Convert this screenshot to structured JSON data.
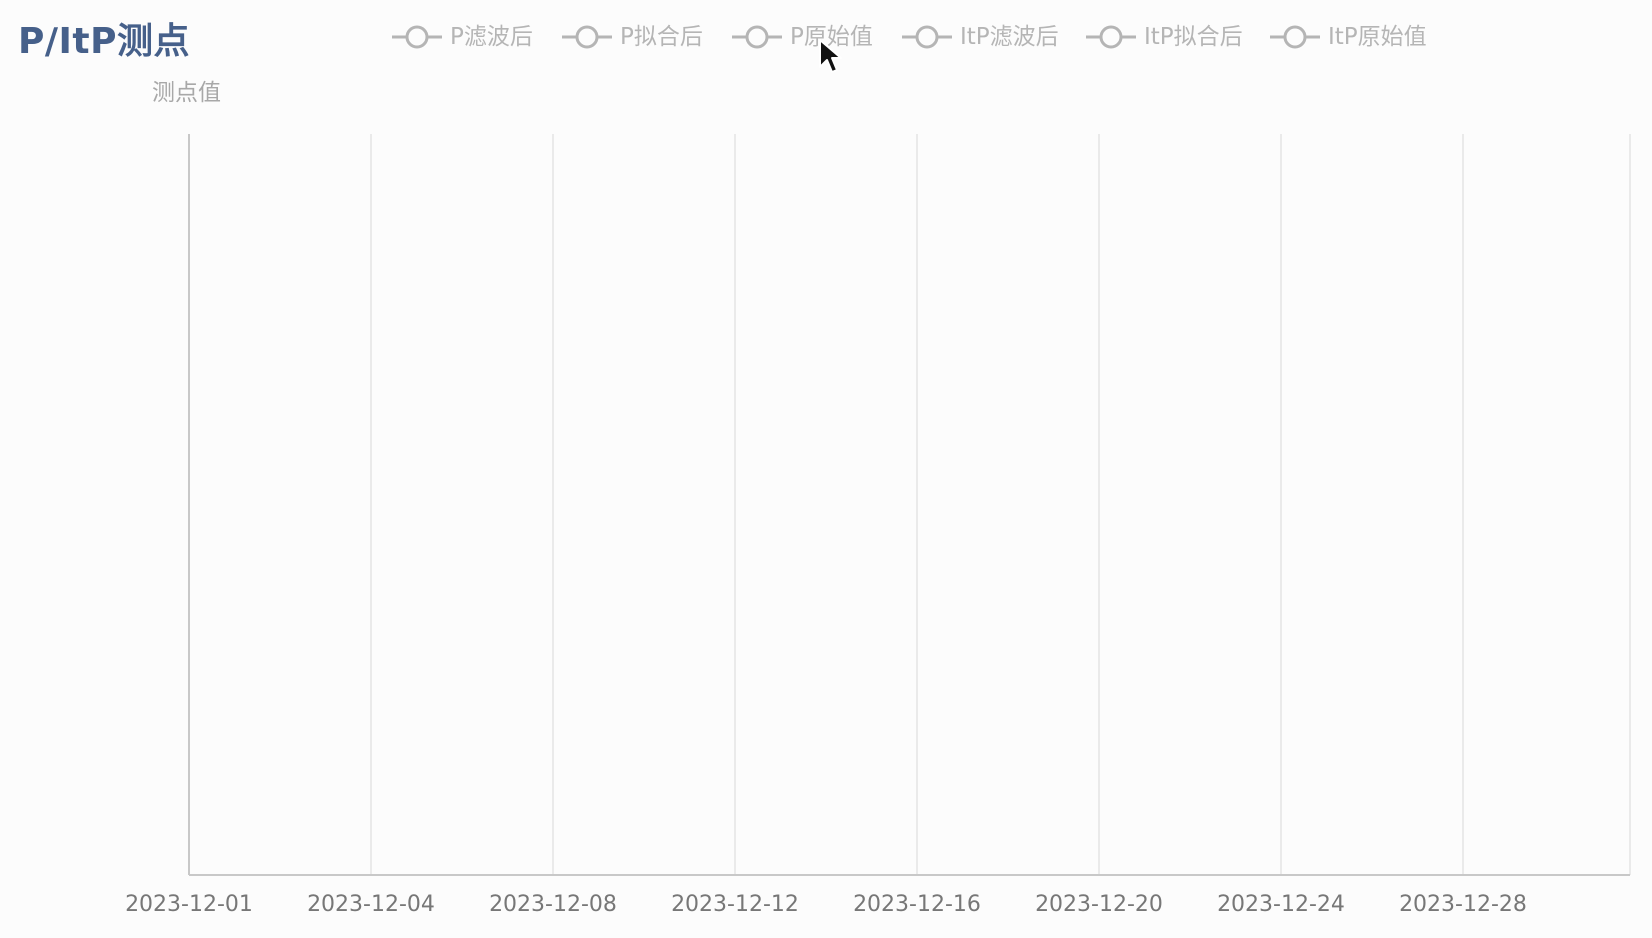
{
  "title": "P/ItP测点",
  "chart_data": {
    "type": "line",
    "title": "P/ItP测点",
    "ylabel": "测点值",
    "xlabel": "",
    "x_ticks": [
      "2023-12-01",
      "2023-12-04",
      "2023-12-08",
      "2023-12-12",
      "2023-12-16",
      "2023-12-20",
      "2023-12-24",
      "2023-12-28"
    ],
    "series": [
      {
        "name": "P滤波后",
        "values": []
      },
      {
        "name": "P拟合后",
        "values": []
      },
      {
        "name": "P原始值",
        "values": []
      },
      {
        "name": "ItP滤波后",
        "values": []
      },
      {
        "name": "ItP拟合后",
        "values": []
      },
      {
        "name": "ItP原始值",
        "values": []
      }
    ],
    "legend_position": "top",
    "legend_state": "all-disabled",
    "grid": "vertical",
    "colors": {
      "legend_inactive": "#b5b5b5",
      "grid": "#e3e3e3",
      "axis": "#c8c8c8",
      "tick_label": "#777777",
      "title": "#46608a"
    }
  }
}
